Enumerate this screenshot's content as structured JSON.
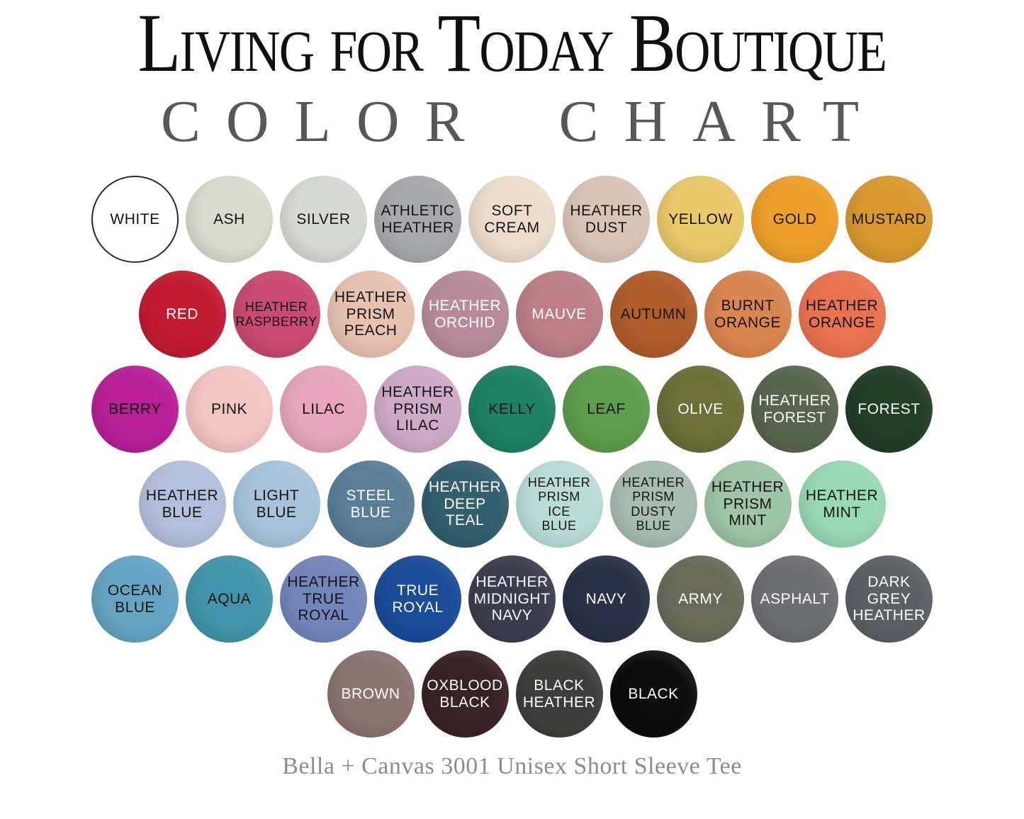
{
  "header": {
    "title": "Living for Today Boutique",
    "subtitle": "COLOR CHART"
  },
  "footer": {
    "caption": "Bella + Canvas 3001 Unisex Short Sleeve Tee"
  },
  "chart_data": {
    "type": "table",
    "title": "Living for Today Boutique",
    "subtitle": "COLOR CHART",
    "caption": "Bella + Canvas 3001 Unisex Short Sleeve Tee",
    "layout": {
      "shape": "circle-swatch-grid",
      "rows": 6,
      "swatches_per_row": [
        9,
        8,
        9,
        8,
        9,
        4
      ]
    },
    "rows": [
      [
        {
          "label": "WHITE",
          "hex": "#ffffff",
          "text_color": "#141414",
          "outline": "#2b2b2b"
        },
        {
          "label": "ASH",
          "hex": "#d9dccf",
          "text_color": "#141414"
        },
        {
          "label": "SILVER",
          "hex": "#d7d9d3",
          "text_color": "#141414"
        },
        {
          "label": "ATHLETIC\nHEATHER",
          "hex": "#a7a9ad",
          "text_color": "#141414"
        },
        {
          "label": "SOFT\nCREAM",
          "hex": "#ecdecb",
          "text_color": "#141414"
        },
        {
          "label": "HEATHER\nDUST",
          "hex": "#d9c5b6",
          "text_color": "#141414"
        },
        {
          "label": "YELLOW",
          "hex": "#e9c96a",
          "text_color": "#141414"
        },
        {
          "label": "GOLD",
          "hex": "#ee9f2a",
          "text_color": "#141414"
        },
        {
          "label": "MUSTARD",
          "hex": "#d9992f",
          "text_color": "#141414"
        }
      ],
      [
        {
          "label": "RED",
          "hex": "#c11b32",
          "text_color": "#ffffff"
        },
        {
          "label": "HEATHER\nRASPBERRY",
          "hex": "#c94a72",
          "text_color": "#141414"
        },
        {
          "label": "HEATHER\nPRISM\nPEACH",
          "hex": "#e8c2b0",
          "text_color": "#141414"
        },
        {
          "label": "HEATHER\nORCHID",
          "hex": "#b78b9b",
          "text_color": "#ffffff"
        },
        {
          "label": "MAUVE",
          "hex": "#bd7e88",
          "text_color": "#ffffff"
        },
        {
          "label": "AUTUMN",
          "hex": "#b05c2b",
          "text_color": "#141414"
        },
        {
          "label": "BURNT\nORANGE",
          "hex": "#d8854f",
          "text_color": "#141414"
        },
        {
          "label": "HEATHER\nORANGE",
          "hex": "#e97350",
          "text_color": "#141414"
        }
      ],
      [
        {
          "label": "BERRY",
          "hex": "#b81f97",
          "text_color": "#141414"
        },
        {
          "label": "PINK",
          "hex": "#f2c6c5",
          "text_color": "#141414"
        },
        {
          "label": "LILAC",
          "hex": "#e7a6bd",
          "text_color": "#141414"
        },
        {
          "label": "HEATHER\nPRISM\nLILAC",
          "hex": "#cfaac7",
          "text_color": "#141414"
        },
        {
          "label": "KELLY",
          "hex": "#1d8164",
          "text_color": "#141414"
        },
        {
          "label": "LEAF",
          "hex": "#5f9c4c",
          "text_color": "#141414"
        },
        {
          "label": "OLIVE",
          "hex": "#6b6e38",
          "text_color": "#ffffff"
        },
        {
          "label": "HEATHER\nFOREST",
          "hex": "#57654f",
          "text_color": "#ffffff"
        },
        {
          "label": "FOREST",
          "hex": "#213e27",
          "text_color": "#ffffff"
        }
      ],
      [
        {
          "label": "HEATHER\nBLUE",
          "hex": "#b4bfdd",
          "text_color": "#141414"
        },
        {
          "label": "LIGHT\nBLUE",
          "hex": "#a7c3dc",
          "text_color": "#141414"
        },
        {
          "label": "STEEL\nBLUE",
          "hex": "#5a7e96",
          "text_color": "#ffffff"
        },
        {
          "label": "HEATHER\nDEEP\nTEAL",
          "hex": "#325e6e",
          "text_color": "#ffffff"
        },
        {
          "label": "HEATHER\nPRISM\nICE\nBLUE",
          "hex": "#badcd7",
          "text_color": "#141414"
        },
        {
          "label": "HEATHER\nPRISM\nDUSTY\nBLUE",
          "hex": "#a6bdb0",
          "text_color": "#141414"
        },
        {
          "label": "HEATHER\nPRISM\nMINT",
          "hex": "#9dc5a6",
          "text_color": "#141414"
        },
        {
          "label": "HEATHER\nMINT",
          "hex": "#98d9b6",
          "text_color": "#141414"
        }
      ],
      [
        {
          "label": "OCEAN\nBLUE",
          "hex": "#65a5c3",
          "text_color": "#141414"
        },
        {
          "label": "AQUA",
          "hex": "#4295ab",
          "text_color": "#141414"
        },
        {
          "label": "HEATHER\nTRUE\nROYAL",
          "hex": "#7386ba",
          "text_color": "#141414"
        },
        {
          "label": "TRUE\nROYAL",
          "hex": "#194b99",
          "text_color": "#ffffff"
        },
        {
          "label": "HEATHER\nMIDNIGHT\nNAVY",
          "hex": "#3c3c4f",
          "text_color": "#ffffff"
        },
        {
          "label": "NAVY",
          "hex": "#293047",
          "text_color": "#ffffff"
        },
        {
          "label": "ARMY",
          "hex": "#696a5b",
          "text_color": "#ffffff"
        },
        {
          "label": "ASPHALT",
          "hex": "#6c6e71",
          "text_color": "#ffffff"
        },
        {
          "label": "DARK\nGREY\nHEATHER",
          "hex": "#5b6065",
          "text_color": "#ffffff"
        }
      ],
      [
        {
          "label": "BROWN",
          "hex": "#8b7370",
          "text_color": "#ffffff"
        },
        {
          "label": "OXBLOOD\nBLACK",
          "hex": "#3a2126",
          "text_color": "#ffffff"
        },
        {
          "label": "BLACK\nHEATHER",
          "hex": "#3e3d3b",
          "text_color": "#ffffff"
        },
        {
          "label": "BLACK",
          "hex": "#0d0d0d",
          "text_color": "#ffffff"
        }
      ]
    ]
  }
}
